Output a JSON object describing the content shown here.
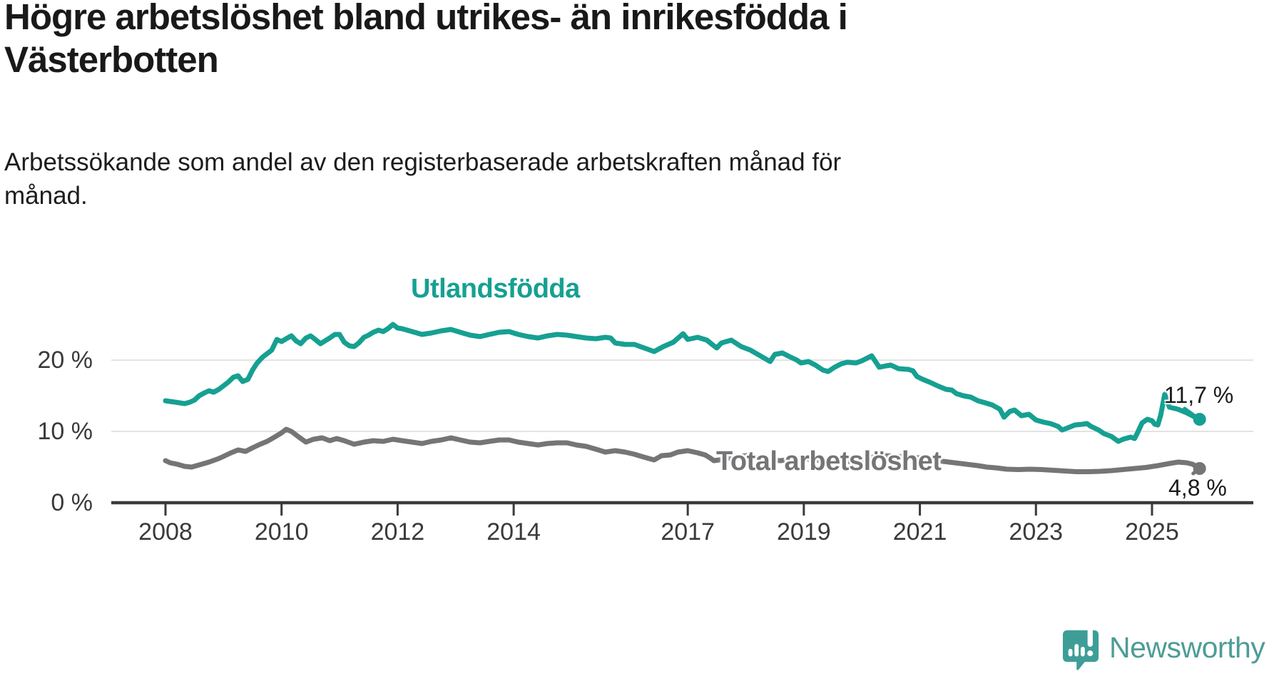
{
  "header": {
    "title": "Högre arbetslöshet bland utrikes- än inrikesfödda i\nVästerbotten",
    "subtitle": "Arbetssökande som andel av den registerbaserade arbetskraften månad för\nmånad."
  },
  "colors": {
    "foreign_series": "#16a092",
    "total_series": "#757578",
    "grid": "#e3e3e3",
    "axis": "#3a3a3a",
    "text": "#1a1a1a",
    "logo": "#4d9c96"
  },
  "logo": {
    "text": "Newsworthy"
  },
  "chart_data": {
    "type": "line",
    "title": "Högre arbetslöshet bland utrikes- än inrikesfödda i Västerbotten",
    "subtitle": "Arbetssökande som andel av den registerbaserade arbetskraften månad för månad.",
    "unit": "%",
    "grid": true,
    "legend_position": "inline-labels",
    "x_axis": {
      "ticks": [
        2008,
        2010,
        2012,
        2014,
        2017,
        2019,
        2021,
        2023,
        2025
      ],
      "range": [
        2008,
        2025.82
      ]
    },
    "y_axis": {
      "ticks": [
        {
          "value": 20,
          "label": "20 %"
        },
        {
          "value": 10,
          "label": "10 %"
        },
        {
          "value": 0,
          "label": "0 %"
        }
      ],
      "range": [
        0,
        27
      ]
    },
    "series": [
      {
        "name": "Utlandsfödda",
        "color": "#16a092",
        "end_label": "11,7 %",
        "end_value": 11.7,
        "points": [
          [
            2008.0,
            14.3
          ],
          [
            2008.08,
            14.2
          ],
          [
            2008.17,
            14.1
          ],
          [
            2008.25,
            14.0
          ],
          [
            2008.33,
            13.9
          ],
          [
            2008.42,
            14.1
          ],
          [
            2008.5,
            14.4
          ],
          [
            2008.58,
            15.0
          ],
          [
            2008.67,
            15.4
          ],
          [
            2008.75,
            15.7
          ],
          [
            2008.83,
            15.5
          ],
          [
            2008.92,
            15.9
          ],
          [
            2009.0,
            16.4
          ],
          [
            2009.08,
            16.9
          ],
          [
            2009.17,
            17.6
          ],
          [
            2009.25,
            17.8
          ],
          [
            2009.33,
            17.0
          ],
          [
            2009.42,
            17.3
          ],
          [
            2009.5,
            18.6
          ],
          [
            2009.58,
            19.6
          ],
          [
            2009.67,
            20.4
          ],
          [
            2009.75,
            20.9
          ],
          [
            2009.83,
            21.4
          ],
          [
            2009.92,
            22.9
          ],
          [
            2010.0,
            22.6
          ],
          [
            2010.08,
            23.0
          ],
          [
            2010.17,
            23.4
          ],
          [
            2010.25,
            22.7
          ],
          [
            2010.33,
            22.3
          ],
          [
            2010.42,
            23.1
          ],
          [
            2010.5,
            23.4
          ],
          [
            2010.58,
            22.9
          ],
          [
            2010.67,
            22.3
          ],
          [
            2010.75,
            22.7
          ],
          [
            2010.83,
            23.1
          ],
          [
            2010.92,
            23.6
          ],
          [
            2011.0,
            23.6
          ],
          [
            2011.08,
            22.5
          ],
          [
            2011.17,
            22.0
          ],
          [
            2011.25,
            21.9
          ],
          [
            2011.33,
            22.4
          ],
          [
            2011.42,
            23.2
          ],
          [
            2011.5,
            23.5
          ],
          [
            2011.58,
            23.9
          ],
          [
            2011.67,
            24.2
          ],
          [
            2011.75,
            24.0
          ],
          [
            2011.83,
            24.4
          ],
          [
            2011.92,
            25.0
          ],
          [
            2012.0,
            24.5
          ],
          [
            2012.08,
            24.4
          ],
          [
            2012.25,
            24.0
          ],
          [
            2012.42,
            23.6
          ],
          [
            2012.58,
            23.8
          ],
          [
            2012.75,
            24.1
          ],
          [
            2012.92,
            24.3
          ],
          [
            2013.08,
            23.9
          ],
          [
            2013.25,
            23.5
          ],
          [
            2013.42,
            23.3
          ],
          [
            2013.58,
            23.6
          ],
          [
            2013.75,
            23.9
          ],
          [
            2013.92,
            24.0
          ],
          [
            2014.08,
            23.6
          ],
          [
            2014.25,
            23.3
          ],
          [
            2014.42,
            23.1
          ],
          [
            2014.58,
            23.4
          ],
          [
            2014.75,
            23.6
          ],
          [
            2014.92,
            23.5
          ],
          [
            2015.08,
            23.3
          ],
          [
            2015.25,
            23.1
          ],
          [
            2015.42,
            23.0
          ],
          [
            2015.58,
            23.2
          ],
          [
            2015.67,
            23.1
          ],
          [
            2015.75,
            22.4
          ],
          [
            2015.92,
            22.2
          ],
          [
            2016.08,
            22.2
          ],
          [
            2016.25,
            21.7
          ],
          [
            2016.42,
            21.2
          ],
          [
            2016.58,
            21.9
          ],
          [
            2016.75,
            22.5
          ],
          [
            2016.92,
            23.7
          ],
          [
            2017.0,
            22.9
          ],
          [
            2017.17,
            23.2
          ],
          [
            2017.33,
            22.8
          ],
          [
            2017.42,
            22.2
          ],
          [
            2017.5,
            21.7
          ],
          [
            2017.58,
            22.4
          ],
          [
            2017.75,
            22.8
          ],
          [
            2017.92,
            21.9
          ],
          [
            2018.08,
            21.4
          ],
          [
            2018.25,
            20.6
          ],
          [
            2018.42,
            19.8
          ],
          [
            2018.5,
            20.8
          ],
          [
            2018.63,
            21.0
          ],
          [
            2018.75,
            20.5
          ],
          [
            2018.88,
            20.0
          ],
          [
            2018.95,
            19.6
          ],
          [
            2019.08,
            19.8
          ],
          [
            2019.2,
            19.3
          ],
          [
            2019.33,
            18.6
          ],
          [
            2019.42,
            18.4
          ],
          [
            2019.53,
            19.0
          ],
          [
            2019.65,
            19.5
          ],
          [
            2019.75,
            19.7
          ],
          [
            2019.9,
            19.6
          ],
          [
            2020.0,
            19.9
          ],
          [
            2020.17,
            20.6
          ],
          [
            2020.3,
            19.0
          ],
          [
            2020.42,
            19.2
          ],
          [
            2020.5,
            19.3
          ],
          [
            2020.63,
            18.8
          ],
          [
            2020.8,
            18.7
          ],
          [
            2020.88,
            18.5
          ],
          [
            2020.95,
            17.7
          ],
          [
            2021.05,
            17.3
          ],
          [
            2021.17,
            16.9
          ],
          [
            2021.33,
            16.3
          ],
          [
            2021.45,
            15.9
          ],
          [
            2021.55,
            15.8
          ],
          [
            2021.63,
            15.3
          ],
          [
            2021.75,
            15.0
          ],
          [
            2021.88,
            14.8
          ],
          [
            2022.0,
            14.3
          ],
          [
            2022.13,
            14.0
          ],
          [
            2022.25,
            13.7
          ],
          [
            2022.38,
            13.1
          ],
          [
            2022.45,
            12.0
          ],
          [
            2022.55,
            12.8
          ],
          [
            2022.63,
            13.0
          ],
          [
            2022.75,
            12.2
          ],
          [
            2022.88,
            12.4
          ],
          [
            2023.0,
            11.6
          ],
          [
            2023.13,
            11.3
          ],
          [
            2023.25,
            11.1
          ],
          [
            2023.38,
            10.7
          ],
          [
            2023.45,
            10.2
          ],
          [
            2023.55,
            10.5
          ],
          [
            2023.67,
            10.9
          ],
          [
            2023.8,
            11.0
          ],
          [
            2023.88,
            11.1
          ],
          [
            2023.95,
            10.7
          ],
          [
            2024.08,
            10.2
          ],
          [
            2024.17,
            9.7
          ],
          [
            2024.3,
            9.3
          ],
          [
            2024.42,
            8.6
          ],
          [
            2024.5,
            8.9
          ],
          [
            2024.63,
            9.2
          ],
          [
            2024.7,
            9.0
          ],
          [
            2024.75,
            9.8
          ],
          [
            2024.83,
            11.2
          ],
          [
            2024.92,
            11.7
          ],
          [
            2025.0,
            11.5
          ],
          [
            2025.05,
            11.0
          ],
          [
            2025.1,
            10.9
          ],
          [
            2025.15,
            12.3
          ],
          [
            2025.22,
            15.2
          ],
          [
            2025.3,
            13.4
          ],
          [
            2025.45,
            13.1
          ],
          [
            2025.6,
            12.6
          ],
          [
            2025.72,
            12.1
          ],
          [
            2025.82,
            11.7
          ]
        ]
      },
      {
        "name": "Total arbetslöshet",
        "color": "#757578",
        "end_label": "4,8 %",
        "end_value": 4.8,
        "points": [
          [
            2008.0,
            5.9
          ],
          [
            2008.08,
            5.6
          ],
          [
            2008.2,
            5.4
          ],
          [
            2008.33,
            5.1
          ],
          [
            2008.45,
            5.0
          ],
          [
            2008.58,
            5.3
          ],
          [
            2008.75,
            5.7
          ],
          [
            2008.92,
            6.2
          ],
          [
            2009.0,
            6.5
          ],
          [
            2009.13,
            7.0
          ],
          [
            2009.25,
            7.4
          ],
          [
            2009.38,
            7.2
          ],
          [
            2009.5,
            7.7
          ],
          [
            2009.63,
            8.2
          ],
          [
            2009.75,
            8.6
          ],
          [
            2009.88,
            9.2
          ],
          [
            2010.0,
            9.8
          ],
          [
            2010.08,
            10.3
          ],
          [
            2010.17,
            10.0
          ],
          [
            2010.3,
            9.2
          ],
          [
            2010.42,
            8.5
          ],
          [
            2010.55,
            8.9
          ],
          [
            2010.7,
            9.1
          ],
          [
            2010.83,
            8.7
          ],
          [
            2010.95,
            9.0
          ],
          [
            2011.08,
            8.7
          ],
          [
            2011.25,
            8.2
          ],
          [
            2011.42,
            8.5
          ],
          [
            2011.58,
            8.7
          ],
          [
            2011.75,
            8.6
          ],
          [
            2011.92,
            8.9
          ],
          [
            2012.08,
            8.7
          ],
          [
            2012.25,
            8.5
          ],
          [
            2012.42,
            8.3
          ],
          [
            2012.58,
            8.6
          ],
          [
            2012.75,
            8.8
          ],
          [
            2012.92,
            9.1
          ],
          [
            2013.08,
            8.8
          ],
          [
            2013.25,
            8.5
          ],
          [
            2013.42,
            8.4
          ],
          [
            2013.58,
            8.6
          ],
          [
            2013.75,
            8.8
          ],
          [
            2013.92,
            8.8
          ],
          [
            2014.08,
            8.5
          ],
          [
            2014.25,
            8.3
          ],
          [
            2014.42,
            8.1
          ],
          [
            2014.58,
            8.3
          ],
          [
            2014.75,
            8.4
          ],
          [
            2014.92,
            8.4
          ],
          [
            2015.08,
            8.1
          ],
          [
            2015.25,
            7.9
          ],
          [
            2015.42,
            7.5
          ],
          [
            2015.58,
            7.1
          ],
          [
            2015.75,
            7.3
          ],
          [
            2015.92,
            7.1
          ],
          [
            2016.08,
            6.8
          ],
          [
            2016.2,
            6.5
          ],
          [
            2016.33,
            6.2
          ],
          [
            2016.42,
            6.0
          ],
          [
            2016.55,
            6.6
          ],
          [
            2016.7,
            6.7
          ],
          [
            2016.83,
            7.1
          ],
          [
            2017.0,
            7.3
          ],
          [
            2017.17,
            7.0
          ],
          [
            2017.3,
            6.7
          ],
          [
            2017.38,
            6.3
          ],
          [
            2017.45,
            5.9
          ],
          [
            2017.63,
            6.1
          ],
          [
            2017.8,
            6.4
          ],
          [
            2018.0,
            6.6
          ],
          [
            2018.2,
            6.3
          ],
          [
            2018.4,
            6.0
          ],
          [
            2018.6,
            5.9
          ],
          [
            2018.8,
            6.1
          ],
          [
            2019.0,
            6.2
          ],
          [
            2019.2,
            6.0
          ],
          [
            2019.4,
            5.7
          ],
          [
            2019.6,
            5.6
          ],
          [
            2019.8,
            5.8
          ],
          [
            2020.0,
            6.0
          ],
          [
            2020.2,
            6.4
          ],
          [
            2020.4,
            6.6
          ],
          [
            2020.6,
            6.5
          ],
          [
            2020.8,
            6.4
          ],
          [
            2021.0,
            6.3
          ],
          [
            2021.2,
            6.0
          ],
          [
            2021.4,
            5.8
          ],
          [
            2021.6,
            5.6
          ],
          [
            2021.8,
            5.4
          ],
          [
            2022.0,
            5.2
          ],
          [
            2022.15,
            5.0
          ],
          [
            2022.3,
            4.9
          ],
          [
            2022.5,
            4.7
          ],
          [
            2022.7,
            4.65
          ],
          [
            2022.9,
            4.7
          ],
          [
            2023.1,
            4.65
          ],
          [
            2023.3,
            4.55
          ],
          [
            2023.5,
            4.45
          ],
          [
            2023.7,
            4.35
          ],
          [
            2023.9,
            4.35
          ],
          [
            2024.1,
            4.4
          ],
          [
            2024.3,
            4.5
          ],
          [
            2024.5,
            4.65
          ],
          [
            2024.7,
            4.8
          ],
          [
            2024.9,
            4.95
          ],
          [
            2025.1,
            5.2
          ],
          [
            2025.3,
            5.5
          ],
          [
            2025.45,
            5.7
          ],
          [
            2025.6,
            5.6
          ],
          [
            2025.7,
            5.4
          ],
          [
            2025.82,
            4.8
          ]
        ]
      }
    ]
  }
}
